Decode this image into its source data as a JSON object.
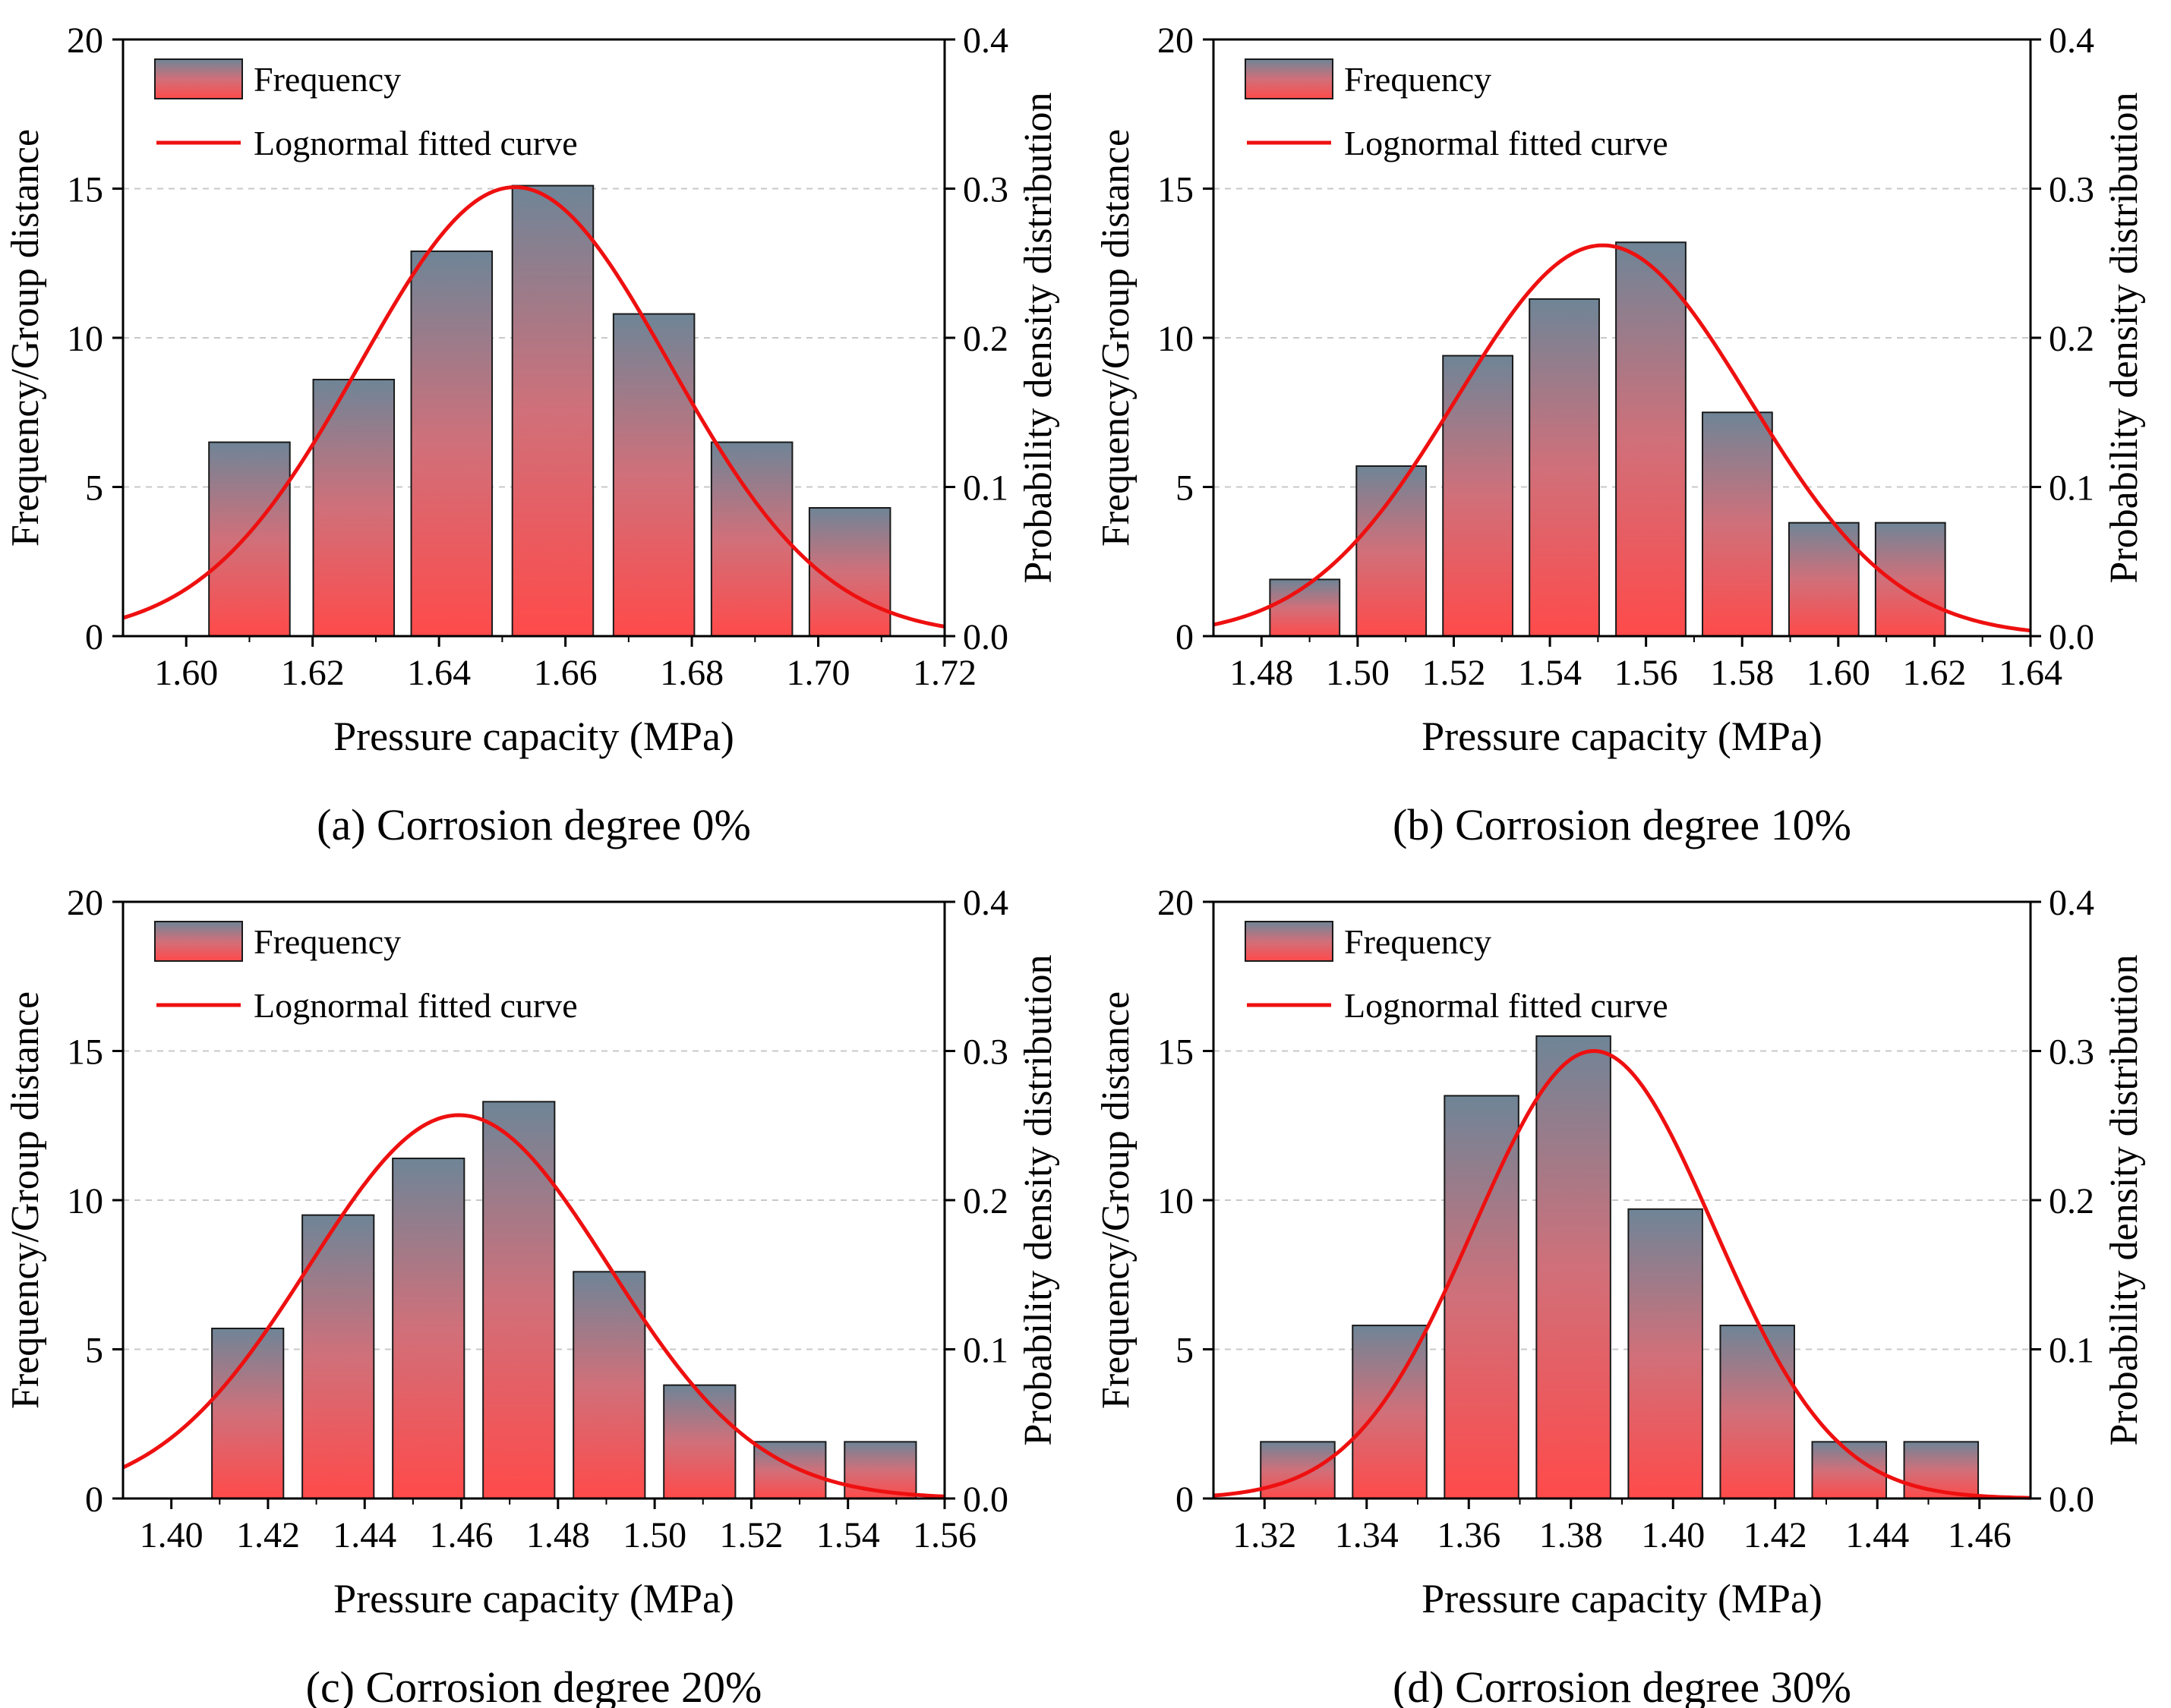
{
  "figure": {
    "colors": {
      "bar_top": "#6e8597",
      "bar_bottom": "#ff4a4a",
      "bar_stroke": "#1a1a1a",
      "curve": "#ee1010",
      "grid": "#c8c8c8",
      "axis": "#000000"
    }
  },
  "chart_data": [
    {
      "type": "bar",
      "panel": "a",
      "caption": "(a) Corrosion degree 0%",
      "xlabel": "Pressure capacity (MPa)",
      "ylabel": "Frequency/Group distance",
      "y2label": "Probability density distribution",
      "xlim": [
        1.59,
        1.72
      ],
      "ylim": [
        0,
        20
      ],
      "y2lim": [
        0,
        0.4
      ],
      "xticks": [
        "1.60",
        "1.62",
        "1.64",
        "1.66",
        "1.68",
        "1.70",
        "1.72"
      ],
      "xtick_values": [
        1.6,
        1.62,
        1.64,
        1.66,
        1.68,
        1.7,
        1.72
      ],
      "yticks": [
        "0",
        "5",
        "10",
        "15",
        "20"
      ],
      "y2ticks": [
        "0.0",
        "0.1",
        "0.2",
        "0.3",
        "0.4"
      ],
      "grid": true,
      "bar_width": 0.0128,
      "bars": [
        {
          "x": 1.61,
          "y": 6.5
        },
        {
          "x": 1.6265,
          "y": 8.6
        },
        {
          "x": 1.642,
          "y": 12.9
        },
        {
          "x": 1.658,
          "y": 15.1
        },
        {
          "x": 1.674,
          "y": 10.8
        },
        {
          "x": 1.6895,
          "y": 6.5
        },
        {
          "x": 1.705,
          "y": 4.3
        }
      ],
      "curve": {
        "type": "lognormal",
        "peak_x": 1.652,
        "peak_y": 15.05,
        "sigma": 0.0245
      },
      "legend": {
        "location": "top-left",
        "entries": [
          "Frequency",
          "Lognormal fitted curve"
        ]
      }
    },
    {
      "type": "bar",
      "panel": "b",
      "caption": "(b) Corrosion degree 10%",
      "xlabel": "Pressure capacity (MPa)",
      "ylabel": "Frequency/Group distance",
      "y2label": "Probability density distribution",
      "xlim": [
        1.47,
        1.64
      ],
      "ylim": [
        0,
        20
      ],
      "y2lim": [
        0,
        0.4
      ],
      "xticks": [
        "1.48",
        "1.50",
        "1.52",
        "1.54",
        "1.56",
        "1.58",
        "1.60",
        "1.62",
        "1.64"
      ],
      "xtick_values": [
        1.48,
        1.5,
        1.52,
        1.54,
        1.56,
        1.58,
        1.6,
        1.62,
        1.64
      ],
      "yticks": [
        "0",
        "5",
        "10",
        "15",
        "20"
      ],
      "y2ticks": [
        "0.0",
        "0.1",
        "0.2",
        "0.3",
        "0.4"
      ],
      "grid": true,
      "bar_width": 0.0145,
      "bars": [
        {
          "x": 1.489,
          "y": 1.9
        },
        {
          "x": 1.507,
          "y": 5.7
        },
        {
          "x": 1.525,
          "y": 9.4
        },
        {
          "x": 1.543,
          "y": 11.3
        },
        {
          "x": 1.561,
          "y": 13.2
        },
        {
          "x": 1.579,
          "y": 7.5
        },
        {
          "x": 1.597,
          "y": 3.8
        },
        {
          "x": 1.615,
          "y": 3.8
        }
      ],
      "curve": {
        "type": "lognormal",
        "peak_x": 1.551,
        "peak_y": 13.1,
        "sigma": 0.0305
      },
      "legend": {
        "location": "top-left",
        "entries": [
          "Frequency",
          "Lognormal fitted curve"
        ]
      }
    },
    {
      "type": "bar",
      "panel": "c",
      "caption": "(c) Corrosion degree 20%",
      "xlabel": "Pressure capacity (MPa)",
      "ylabel": "Frequency/Group distance",
      "y2label": "Probability density distribution",
      "xlim": [
        1.39,
        1.56
      ],
      "ylim": [
        0,
        20
      ],
      "y2lim": [
        0,
        0.4
      ],
      "xticks": [
        "1.40",
        "1.42",
        "1.44",
        "1.46",
        "1.48",
        "1.50",
        "1.52",
        "1.54",
        "1.56"
      ],
      "xtick_values": [
        1.4,
        1.42,
        1.44,
        1.46,
        1.48,
        1.5,
        1.52,
        1.54,
        1.56
      ],
      "yticks": [
        "0",
        "5",
        "10",
        "15",
        "20"
      ],
      "y2ticks": [
        "0.0",
        "0.1",
        "0.2",
        "0.3",
        "0.4"
      ],
      "grid": true,
      "bar_width": 0.0148,
      "bars": [
        {
          "x": 1.4158,
          "y": 5.7
        },
        {
          "x": 1.4345,
          "y": 9.5
        },
        {
          "x": 1.4532,
          "y": 11.4
        },
        {
          "x": 1.4719,
          "y": 13.3
        },
        {
          "x": 1.4906,
          "y": 7.6
        },
        {
          "x": 1.5093,
          "y": 3.8
        },
        {
          "x": 1.528,
          "y": 1.9
        },
        {
          "x": 1.5467,
          "y": 1.9
        }
      ],
      "curve": {
        "type": "lognormal",
        "peak_x": 1.4595,
        "peak_y": 12.85,
        "sigma": 0.031
      },
      "legend": {
        "location": "top-left",
        "entries": [
          "Frequency",
          "Lognormal fitted curve"
        ]
      }
    },
    {
      "type": "bar",
      "panel": "d",
      "caption": "(d) Corrosion degree 30%",
      "xlabel": "Pressure capacity (MPa)",
      "ylabel": "Frequency/Group distance",
      "y2label": "Probability density distribution",
      "xlim": [
        1.31,
        1.47
      ],
      "ylim": [
        0,
        20
      ],
      "y2lim": [
        0,
        0.4
      ],
      "xticks": [
        "1.32",
        "1.34",
        "1.36",
        "1.38",
        "1.40",
        "1.42",
        "1.44",
        "1.46"
      ],
      "xtick_values": [
        1.32,
        1.34,
        1.36,
        1.38,
        1.4,
        1.42,
        1.44,
        1.46
      ],
      "yticks": [
        "0",
        "5",
        "10",
        "15",
        "20"
      ],
      "y2ticks": [
        "0.0",
        "0.1",
        "0.2",
        "0.3",
        "0.4"
      ],
      "grid": true,
      "bar_width": 0.0145,
      "bars": [
        {
          "x": 1.3265,
          "y": 1.9
        },
        {
          "x": 1.3445,
          "y": 5.8
        },
        {
          "x": 1.3625,
          "y": 13.5
        },
        {
          "x": 1.3805,
          "y": 15.5
        },
        {
          "x": 1.3985,
          "y": 9.7
        },
        {
          "x": 1.4165,
          "y": 5.8
        },
        {
          "x": 1.4345,
          "y": 1.9
        },
        {
          "x": 1.4525,
          "y": 1.9
        }
      ],
      "curve": {
        "type": "lognormal",
        "peak_x": 1.3845,
        "peak_y": 15.0,
        "sigma": 0.0235
      },
      "legend": {
        "location": "top-left",
        "entries": [
          "Frequency",
          "Lognormal fitted curve"
        ]
      }
    }
  ]
}
